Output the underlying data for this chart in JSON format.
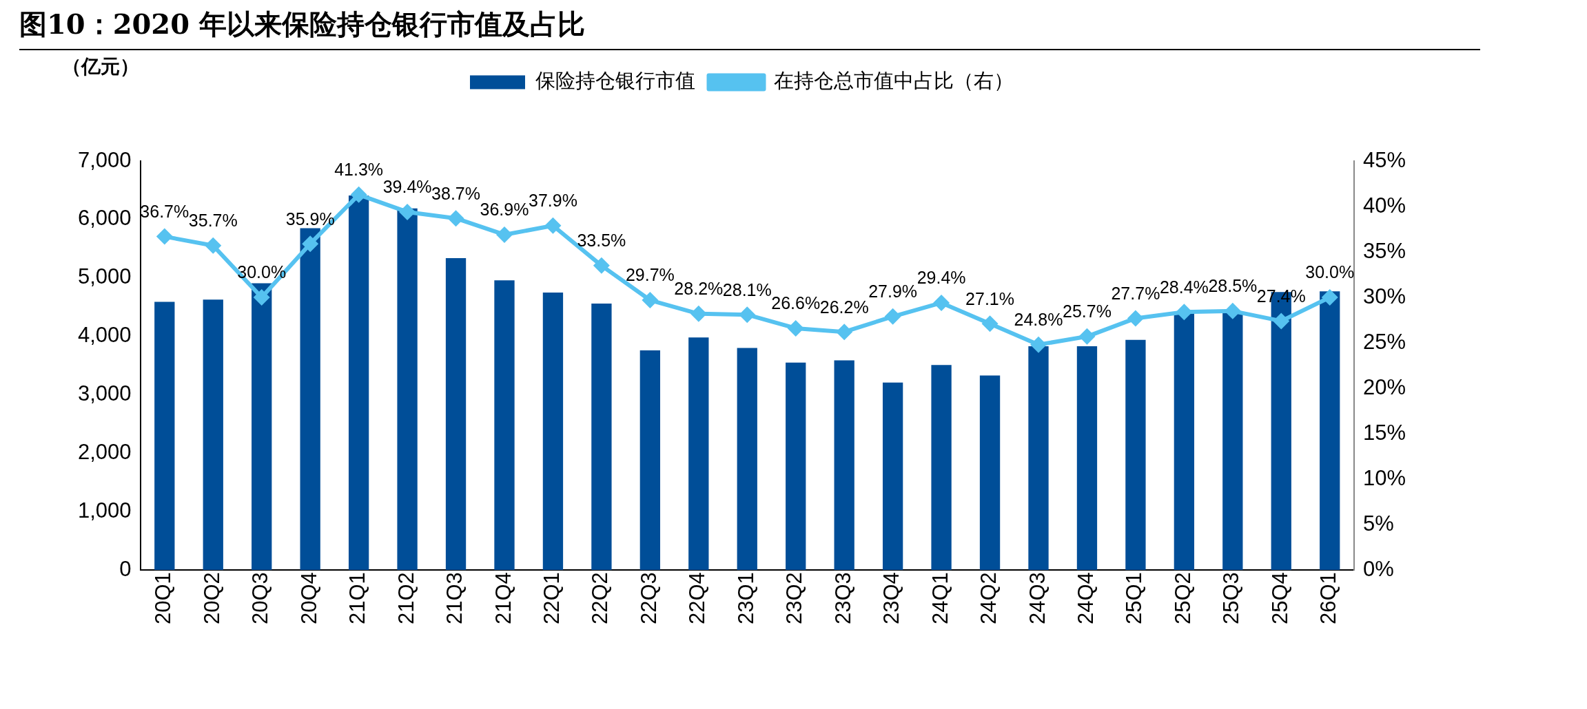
{
  "chart_data": {
    "type": "bar",
    "title": "图10：2020 年以来保险持仓银行市值及占比",
    "annotations": [
      "（亿元）"
    ],
    "categories": [
      "20Q1",
      "20Q2",
      "20Q3",
      "20Q4",
      "21Q1",
      "21Q2",
      "21Q3",
      "21Q4",
      "22Q1",
      "22Q2",
      "22Q3",
      "22Q4",
      "23Q1",
      "23Q2",
      "23Q3",
      "23Q4",
      "24Q1",
      "24Q2",
      "24Q3",
      "24Q4",
      "25Q1",
      "25Q2",
      "25Q3",
      "25Q4",
      "26Q1"
    ],
    "series": [
      {
        "name": "保险持仓银行市值",
        "color": "#004e98",
        "values": [
          4590,
          4630,
          4910,
          5850,
          6410,
          6190,
          5340,
          4960,
          4750,
          4560,
          3760,
          3980,
          3800,
          3550,
          3590,
          3210,
          3510,
          3330,
          3830,
          3830,
          3940,
          4400,
          4410,
          4760,
          4770
        ]
      },
      {
        "name": "在持仓总市值中占比（右）",
        "type": "line",
        "axis": "y2",
        "color": "#56c2f0",
        "marker": "diamond",
        "values": [
          36.7,
          35.7,
          30.0,
          35.9,
          41.3,
          39.4,
          38.7,
          36.9,
          37.9,
          33.5,
          29.7,
          28.2,
          28.1,
          26.6,
          26.2,
          27.9,
          29.4,
          27.1,
          24.8,
          25.7,
          27.7,
          28.4,
          28.5,
          27.4,
          30.0
        ],
        "value_labels": [
          "36.7%",
          "35.7%",
          "30.0%",
          "35.9%",
          "41.3%",
          "39.4%",
          "38.7%",
          "36.9%",
          "37.9%",
          "33.5%",
          "29.7%",
          "28.2%",
          "28.1%",
          "26.6%",
          "26.2%",
          "27.9%",
          "29.4%",
          "27.1%",
          "24.8%",
          "25.7%",
          "27.7%",
          "28.4%",
          "28.5%",
          "27.4%",
          "30.0%"
        ]
      }
    ],
    "ylim": [
      0,
      7000
    ],
    "yticks": [
      0,
      {
        "value": 1000,
        "label": "1,000"
      },
      {
        "value": 2000,
        "label": "2,000"
      },
      {
        "value": 3000,
        "label": "3,000"
      },
      {
        "value": 4000,
        "label": "4,000"
      },
      {
        "value": 5000,
        "label": "5,000"
      },
      {
        "value": 6000,
        "label": "6,000"
      },
      {
        "value": 7000,
        "label": "7,000"
      }
    ],
    "y2lim": [
      0,
      45
    ],
    "y2ticks": [
      {
        "value": 0,
        "label": "0%"
      },
      {
        "value": 5,
        "label": "5%"
      },
      {
        "value": 10,
        "label": "10%"
      },
      {
        "value": 15,
        "label": "15%"
      },
      {
        "value": 20,
        "label": "20%"
      },
      {
        "value": 25,
        "label": "25%"
      },
      {
        "value": 30,
        "label": "30%"
      },
      {
        "value": 35,
        "label": "35%"
      },
      {
        "value": 40,
        "label": "40%"
      },
      {
        "value": 45,
        "label": "45%"
      }
    ],
    "grid": false,
    "legend": "top"
  }
}
